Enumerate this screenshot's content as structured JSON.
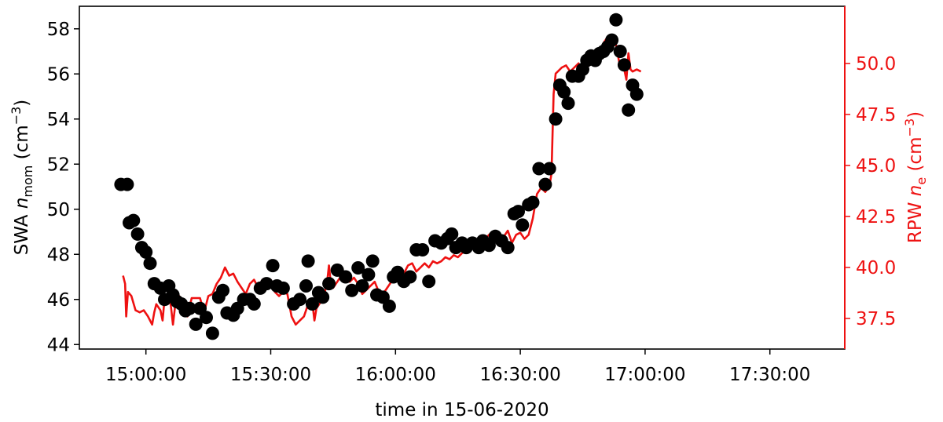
{
  "chart_data": {
    "type": "scatter+line",
    "title": "",
    "xlabel": "time in 15-06-2020",
    "x_range": [
      "14:44:00",
      "17:48:00"
    ],
    "x_ticks": [
      "15:00:00",
      "15:30:00",
      "16:00:00",
      "16:30:00",
      "17:00:00",
      "17:30:00"
    ],
    "y_left": {
      "label_prefix": "SWA ",
      "label_var": "n",
      "label_sub": "mom",
      "label_unit_open": " (cm",
      "label_sup": "−3",
      "label_unit_close": ")",
      "range": [
        43.8,
        59.0
      ],
      "ticks": [
        "44",
        "46",
        "48",
        "50",
        "52",
        "54",
        "56",
        "58"
      ],
      "color": "#000000"
    },
    "y_right": {
      "label_prefix": "RPW ",
      "label_var": "n",
      "label_sub": "e",
      "label_unit_open": " (cm",
      "label_sup": "−3",
      "label_unit_close": ")",
      "range": [
        36.0,
        52.8
      ],
      "ticks": [
        "37.5",
        "40.0",
        "42.5",
        "45.0",
        "47.5",
        "50.0"
      ],
      "color": "#ee1111"
    },
    "series": [
      {
        "kind": "scatter",
        "axis": "left",
        "color": "#000000",
        "points": [
          [
            "14:54:00",
            51.1
          ],
          [
            "14:55:30",
            51.1
          ],
          [
            "14:56:00",
            49.4
          ],
          [
            "14:57:00",
            49.5
          ],
          [
            "14:58:00",
            48.9
          ],
          [
            "14:59:00",
            48.3
          ],
          [
            "15:00:00",
            48.1
          ],
          [
            "15:01:00",
            47.6
          ],
          [
            "15:02:00",
            46.7
          ],
          [
            "15:03:30",
            46.5
          ],
          [
            "15:04:30",
            46.0
          ],
          [
            "15:05:30",
            46.6
          ],
          [
            "15:06:30",
            46.2
          ],
          [
            "15:07:30",
            45.9
          ],
          [
            "15:08:30",
            45.8
          ],
          [
            "15:09:30",
            45.5
          ],
          [
            "15:10:30",
            45.6
          ],
          [
            "15:12:00",
            44.9
          ],
          [
            "15:13:00",
            45.6
          ],
          [
            "15:14:30",
            45.2
          ],
          [
            "15:16:00",
            44.5
          ],
          [
            "15:17:30",
            46.1
          ],
          [
            "15:18:30",
            46.4
          ],
          [
            "15:19:30",
            45.4
          ],
          [
            "15:21:00",
            45.3
          ],
          [
            "15:22:00",
            45.6
          ],
          [
            "15:23:30",
            46.0
          ],
          [
            "15:25:00",
            46.0
          ],
          [
            "15:26:00",
            45.8
          ],
          [
            "15:27:30",
            46.5
          ],
          [
            "15:29:00",
            46.7
          ],
          [
            "15:30:30",
            47.5
          ],
          [
            "15:31:30",
            46.6
          ],
          [
            "15:33:00",
            46.5
          ],
          [
            "15:35:30",
            45.8
          ],
          [
            "15:37:00",
            46.0
          ],
          [
            "15:38:30",
            46.6
          ],
          [
            "15:39:00",
            47.7
          ],
          [
            "15:40:00",
            45.8
          ],
          [
            "15:41:30",
            46.3
          ],
          [
            "15:42:30",
            46.1
          ],
          [
            "15:44:00",
            46.7
          ],
          [
            "15:46:00",
            47.3
          ],
          [
            "15:48:00",
            47.0
          ],
          [
            "15:49:30",
            46.4
          ],
          [
            "15:51:00",
            47.4
          ],
          [
            "15:52:00",
            46.6
          ],
          [
            "15:53:30",
            47.1
          ],
          [
            "15:54:30",
            47.7
          ],
          [
            "15:55:30",
            46.2
          ],
          [
            "15:57:00",
            46.1
          ],
          [
            "15:58:30",
            45.7
          ],
          [
            "15:59:30",
            47.0
          ],
          [
            "16:00:30",
            47.2
          ],
          [
            "16:02:00",
            46.8
          ],
          [
            "16:03:30",
            47.0
          ],
          [
            "16:05:00",
            48.2
          ],
          [
            "16:06:30",
            48.2
          ],
          [
            "16:08:00",
            46.8
          ],
          [
            "16:09:30",
            48.6
          ],
          [
            "16:11:00",
            48.5
          ],
          [
            "16:12:30",
            48.7
          ],
          [
            "16:13:30",
            48.9
          ],
          [
            "16:14:30",
            48.3
          ],
          [
            "16:16:00",
            48.5
          ],
          [
            "16:17:00",
            48.3
          ],
          [
            "16:18:30",
            48.5
          ],
          [
            "16:20:00",
            48.3
          ],
          [
            "16:21:00",
            48.6
          ],
          [
            "16:22:30",
            48.4
          ],
          [
            "16:24:00",
            48.8
          ],
          [
            "16:25:30",
            48.6
          ],
          [
            "16:27:00",
            48.3
          ],
          [
            "16:28:30",
            49.8
          ],
          [
            "16:29:30",
            49.9
          ],
          [
            "16:30:30",
            49.3
          ],
          [
            "16:32:00",
            50.2
          ],
          [
            "16:33:00",
            50.3
          ],
          [
            "16:34:30",
            51.8
          ],
          [
            "16:36:00",
            51.1
          ],
          [
            "16:37:00",
            51.8
          ],
          [
            "16:38:30",
            54.0
          ],
          [
            "16:39:30",
            55.5
          ],
          [
            "16:40:30",
            55.2
          ],
          [
            "16:41:30",
            54.7
          ],
          [
            "16:42:30",
            55.9
          ],
          [
            "16:44:00",
            55.9
          ],
          [
            "16:45:00",
            56.2
          ],
          [
            "16:46:00",
            56.6
          ],
          [
            "16:47:00",
            56.8
          ],
          [
            "16:48:00",
            56.6
          ],
          [
            "16:49:00",
            56.9
          ],
          [
            "16:50:00",
            57.0
          ],
          [
            "16:51:00",
            57.2
          ],
          [
            "16:52:00",
            57.5
          ],
          [
            "16:53:00",
            58.4
          ],
          [
            "16:54:00",
            57.0
          ],
          [
            "16:55:00",
            56.4
          ],
          [
            "16:56:00",
            54.4
          ],
          [
            "16:57:00",
            55.5
          ],
          [
            "16:58:00",
            55.1
          ]
        ]
      },
      {
        "kind": "line",
        "axis": "right",
        "color": "#ee1111",
        "points": [
          [
            "14:54:30",
            39.6
          ],
          [
            "14:55:00",
            39.2
          ],
          [
            "14:55:15",
            37.6
          ],
          [
            "14:55:40",
            38.8
          ],
          [
            "14:56:30",
            38.6
          ],
          [
            "14:57:30",
            37.9
          ],
          [
            "14:58:30",
            37.8
          ],
          [
            "14:59:30",
            37.9
          ],
          [
            "15:00:30",
            37.6
          ],
          [
            "15:01:30",
            37.2
          ],
          [
            "15:02:00",
            37.8
          ],
          [
            "15:02:30",
            38.2
          ],
          [
            "15:03:30",
            37.9
          ],
          [
            "15:04:00",
            37.4
          ],
          [
            "15:04:30",
            38.5
          ],
          [
            "15:05:30",
            38.8
          ],
          [
            "15:06:00",
            38.1
          ],
          [
            "15:06:30",
            37.2
          ],
          [
            "15:07:00",
            38.1
          ],
          [
            "15:08:00",
            38.6
          ],
          [
            "15:09:00",
            38.2
          ],
          [
            "15:10:00",
            37.6
          ],
          [
            "15:11:00",
            38.5
          ],
          [
            "15:12:00",
            38.5
          ],
          [
            "15:13:00",
            38.5
          ],
          [
            "15:14:00",
            37.8
          ],
          [
            "15:15:00",
            38.6
          ],
          [
            "15:16:00",
            38.7
          ],
          [
            "15:17:00",
            39.2
          ],
          [
            "15:18:00",
            39.5
          ],
          [
            "15:19:00",
            40.0
          ],
          [
            "15:20:00",
            39.6
          ],
          [
            "15:21:00",
            39.7
          ],
          [
            "15:22:00",
            39.3
          ],
          [
            "15:23:00",
            39.0
          ],
          [
            "15:24:00",
            38.7
          ],
          [
            "15:25:00",
            39.2
          ],
          [
            "15:26:00",
            39.4
          ],
          [
            "15:27:00",
            39.0
          ],
          [
            "15:28:00",
            39.4
          ],
          [
            "15:29:00",
            39.0
          ],
          [
            "15:30:00",
            39.4
          ],
          [
            "15:31:00",
            38.8
          ],
          [
            "15:32:00",
            38.6
          ],
          [
            "15:33:00",
            38.8
          ],
          [
            "15:34:00",
            38.7
          ],
          [
            "15:35:00",
            37.6
          ],
          [
            "15:36:00",
            37.2
          ],
          [
            "15:37:00",
            37.4
          ],
          [
            "15:38:00",
            37.6
          ],
          [
            "15:39:00",
            38.2
          ],
          [
            "15:40:00",
            38.3
          ],
          [
            "15:40:30",
            37.4
          ],
          [
            "15:41:00",
            38.0
          ],
          [
            "15:42:00",
            38.3
          ],
          [
            "15:43:00",
            38.8
          ],
          [
            "15:43:30",
            39.2
          ],
          [
            "15:44:00",
            40.1
          ],
          [
            "15:44:30",
            39.1
          ],
          [
            "15:45:00",
            39.0
          ],
          [
            "15:46:00",
            39.3
          ],
          [
            "15:47:00",
            39.6
          ],
          [
            "15:48:00",
            39.5
          ],
          [
            "15:49:00",
            39.3
          ],
          [
            "15:50:00",
            39.5
          ],
          [
            "15:51:00",
            39.2
          ],
          [
            "15:52:00",
            38.7
          ],
          [
            "15:53:00",
            38.9
          ],
          [
            "15:54:00",
            39.1
          ],
          [
            "15:55:00",
            39.3
          ],
          [
            "15:56:00",
            38.8
          ],
          [
            "15:57:00",
            38.7
          ],
          [
            "15:58:00",
            39.0
          ],
          [
            "15:59:00",
            39.3
          ],
          [
            "16:00:00",
            39.5
          ],
          [
            "16:01:00",
            39.9
          ],
          [
            "16:02:00",
            39.7
          ],
          [
            "16:03:00",
            40.1
          ],
          [
            "16:04:00",
            40.2
          ],
          [
            "16:05:00",
            39.8
          ],
          [
            "16:06:00",
            40.0
          ],
          [
            "16:07:00",
            40.2
          ],
          [
            "16:08:00",
            40.0
          ],
          [
            "16:09:00",
            40.3
          ],
          [
            "16:10:00",
            40.2
          ],
          [
            "16:11:00",
            40.3
          ],
          [
            "16:12:00",
            40.5
          ],
          [
            "16:13:00",
            40.4
          ],
          [
            "16:14:00",
            40.6
          ],
          [
            "16:15:00",
            40.5
          ],
          [
            "16:16:00",
            40.7
          ],
          [
            "16:17:00",
            40.8
          ],
          [
            "16:18:00",
            40.9
          ],
          [
            "16:19:00",
            41.0
          ],
          [
            "16:20:00",
            41.1
          ],
          [
            "16:21:00",
            41.3
          ],
          [
            "16:22:00",
            41.5
          ],
          [
            "16:23:00",
            41.7
          ],
          [
            "16:24:00",
            41.5
          ],
          [
            "16:25:00",
            41.3
          ],
          [
            "16:26:00",
            41.5
          ],
          [
            "16:27:00",
            41.8
          ],
          [
            "16:28:00",
            41.2
          ],
          [
            "16:29:00",
            41.6
          ],
          [
            "16:30:00",
            41.7
          ],
          [
            "16:31:00",
            41.4
          ],
          [
            "16:32:00",
            41.6
          ],
          [
            "16:33:00",
            42.4
          ],
          [
            "16:34:00",
            43.6
          ],
          [
            "16:35:00",
            43.9
          ],
          [
            "16:36:00",
            43.7
          ],
          [
            "16:37:00",
            44.0
          ],
          [
            "16:37:30",
            44.6
          ],
          [
            "16:38:00",
            48.5
          ],
          [
            "16:38:30",
            49.5
          ],
          [
            "16:39:00",
            49.6
          ],
          [
            "16:40:00",
            49.8
          ],
          [
            "16:41:00",
            49.9
          ],
          [
            "16:42:00",
            49.6
          ],
          [
            "16:43:00",
            49.8
          ],
          [
            "16:44:00",
            50.0
          ],
          [
            "16:45:00",
            49.7
          ],
          [
            "16:46:00",
            49.8
          ],
          [
            "16:47:00",
            50.0
          ],
          [
            "16:48:00",
            49.9
          ],
          [
            "16:49:00",
            50.2
          ],
          [
            "16:50:00",
            51.0
          ],
          [
            "16:51:00",
            51.3
          ],
          [
            "16:52:00",
            51.0
          ],
          [
            "16:53:00",
            50.9
          ],
          [
            "16:54:00",
            49.8
          ],
          [
            "16:55:00",
            49.7
          ],
          [
            "16:55:30",
            49.2
          ],
          [
            "16:56:00",
            50.5
          ],
          [
            "16:56:30",
            49.7
          ],
          [
            "16:57:00",
            49.6
          ],
          [
            "16:58:00",
            49.7
          ],
          [
            "16:59:00",
            49.6
          ]
        ]
      }
    ]
  }
}
